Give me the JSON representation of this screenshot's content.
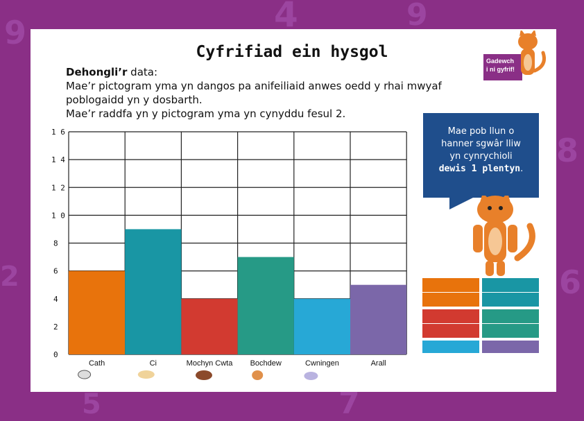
{
  "title": "Cyfrifiad ein hysgol",
  "intro": {
    "heading": "Dehongli’r",
    "heading_rest": " data:",
    "line1": "Mae’r pictogram yma yn dangos pa anifeiliaid anwes oedd y rhai mwyaf",
    "line2": "poblogaidd yn y dosbarth.",
    "line3": "Mae’r raddfa yn y pictogram yma yn cynyddu fesul 2."
  },
  "bubble": {
    "line1": "Mae pob llun o",
    "line2": "hanner sgwâr lliw",
    "line3": "yn cynrychioli",
    "bold": "dewis 1 plentyn",
    "end": "."
  },
  "badge": {
    "line1": "Gadewch",
    "line2": "i ni gyfrif!"
  },
  "colors": {
    "background": "#8a2f86",
    "bubble": "#1f4e8c",
    "Cath": "#e8730c",
    "Ci": "#1996a4",
    "Mochyn Cwta": "#d23a30",
    "Bochdew": "#269a86",
    "Cwningen": "#27a8d6",
    "Arall": "#7b67a9"
  },
  "chart_data": {
    "type": "bar",
    "categories": [
      "Cath",
      "Ci",
      "Mochyn Cwta",
      "Bochdew",
      "Cwningen",
      "Arall"
    ],
    "values": [
      6,
      9,
      4,
      7,
      4,
      5
    ],
    "yticks": [
      0,
      2,
      4,
      6,
      8,
      10,
      12,
      14,
      16
    ],
    "ylim": [
      0,
      16
    ],
    "grid": true
  },
  "key_colors": [
    "#e8730c",
    "#1996a4",
    "#e8730c",
    "#1996a4",
    "#d23a30",
    "#269a86",
    "#d23a30",
    "#269a86",
    "#27a8d6",
    "#7b67a9"
  ]
}
